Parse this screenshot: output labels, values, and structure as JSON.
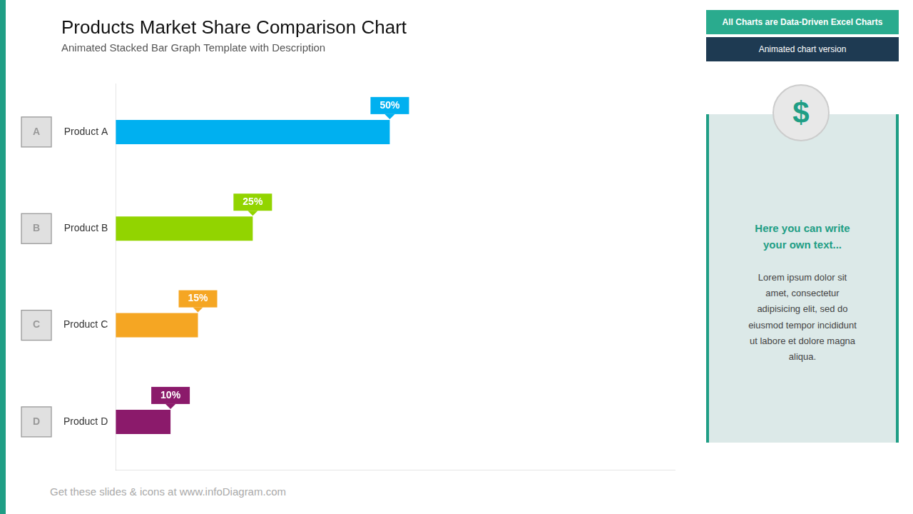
{
  "chart_data": {
    "type": "bar",
    "orientation": "horizontal",
    "title": "Products Market Share Comparison Chart",
    "subtitle": "Animated Stacked Bar Graph Template with Description",
    "categories": [
      "Product A",
      "Product B",
      "Product C",
      "Product D"
    ],
    "values": [
      50,
      25,
      15,
      10
    ],
    "value_labels": [
      "50%",
      "25%",
      "15%",
      "10%"
    ],
    "colors": [
      "#00b0f0",
      "#92d400",
      "#f5a623",
      "#8b1a6b"
    ],
    "xlim": [
      0,
      102
    ],
    "xticks": [],
    "data_labels": true,
    "tick_labels": "y",
    "grid": false,
    "annotations": [
      "All Charts are Data-Driven Excel Charts",
      "Animated chart version",
      "Here you can write\nyour own text...",
      "Lorem ipsum dolor sit\namet, consectetur\nadipisicing elit, sed do\neiusmod tempor incididunt\nut labore et dolore magna\naliqua.",
      "$",
      "Get these slides & icons at www.infoDiagram.com",
      "A",
      "B",
      "C",
      "D"
    ]
  }
}
